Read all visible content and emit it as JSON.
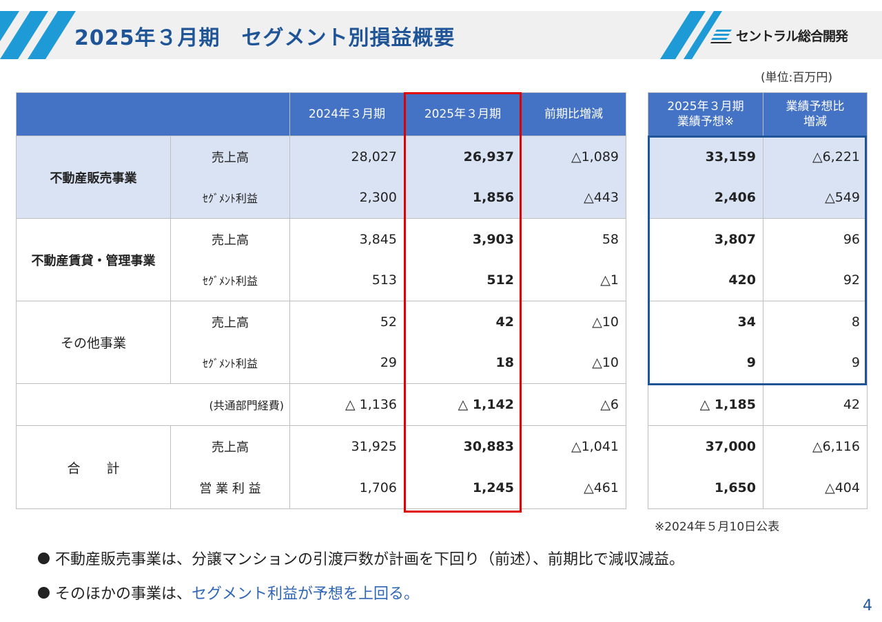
{
  "header": {
    "title": "2025年３月期　セグメント別損益概要",
    "logo_text": "セントラル総合開発",
    "accent_color": "#1f5597",
    "stripe_color": "#1e9ad6"
  },
  "unit_label": "(単位:百万円)",
  "main_table": {
    "headers": [
      "",
      "2024年３月期",
      "2025年３月期",
      "前期比増減"
    ],
    "segments": [
      {
        "name": "不動産販売事業",
        "rows": [
          {
            "item": "売上高",
            "fy2024": "28,027",
            "fy2025": "26,937",
            "yoy": "△1,089"
          },
          {
            "item": "ｾｸﾞﾒﾝﾄ利益",
            "fy2024": "2,300",
            "fy2025": "1,856",
            "yoy": "△443"
          }
        ]
      },
      {
        "name": "不動産賃貸・管理事業",
        "rows": [
          {
            "item": "売上高",
            "fy2024": "3,845",
            "fy2025": "3,903",
            "yoy": "58"
          },
          {
            "item": "ｾｸﾞﾒﾝﾄ利益",
            "fy2024": "513",
            "fy2025": "512",
            "yoy": "△1"
          }
        ]
      },
      {
        "name": "その他事業",
        "rows": [
          {
            "item": "売上高",
            "fy2024": "52",
            "fy2025": "42",
            "yoy": "△10"
          },
          {
            "item": "ｾｸﾞﾒﾝﾄ利益",
            "fy2024": "29",
            "fy2025": "18",
            "yoy": "△10"
          }
        ]
      }
    ],
    "common": {
      "item": "(共通部門経費)",
      "fy2024": "△ 1,136",
      "fy2025": "△ 1,142",
      "yoy": "△6"
    },
    "total": {
      "name": "合　　計",
      "rows": [
        {
          "item": "売上高",
          "fy2024": "31,925",
          "fy2025": "30,883",
          "yoy": "△1,041"
        },
        {
          "item": "営 業 利 益",
          "fy2024": "1,706",
          "fy2025": "1,245",
          "yoy": "△461"
        }
      ]
    }
  },
  "forecast_table": {
    "header_forecast_line1": "2025年３月期",
    "header_forecast_line2": "業績予想※",
    "header_diff_line1": "業績予想比",
    "header_diff_line2": "増減",
    "rows": [
      {
        "forecast": "33,159",
        "diff": "△6,221"
      },
      {
        "forecast": "2,406",
        "diff": "△549"
      },
      {
        "forecast": "3,807",
        "diff": "96"
      },
      {
        "forecast": "420",
        "diff": "92"
      },
      {
        "forecast": "34",
        "diff": "8"
      },
      {
        "forecast": "9",
        "diff": "9"
      },
      {
        "forecast": "△ 1,185",
        "diff": "42"
      },
      {
        "forecast": "37,000",
        "diff": "△6,116"
      },
      {
        "forecast": "1,650",
        "diff": "△404"
      }
    ]
  },
  "footnote": "※2024年５月10日公表",
  "bullets": {
    "b1": "不動産販売事業は、分譲マンションの引渡戸数が計画を下回り（前述）、前期比で減収減益。",
    "b2_prefix": "そのほかの事業は、",
    "b2_highlight": "セグメント利益が予想を上回る。"
  },
  "page_number": "4"
}
